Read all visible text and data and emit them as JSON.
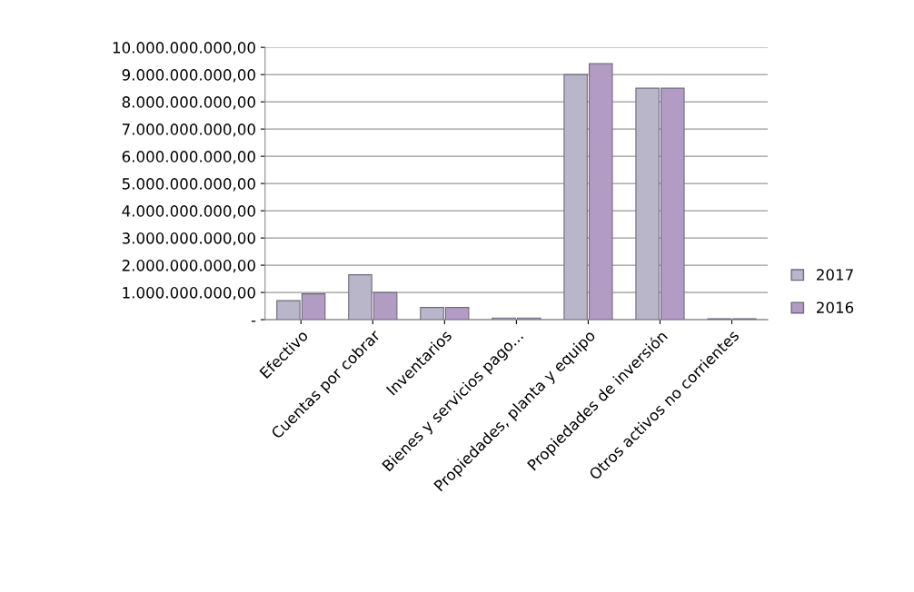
{
  "chart_data": {
    "type": "bar",
    "categories": [
      "Efectivo",
      "Cuentas por cobrar",
      "Inventarios",
      "Bienes y servicios pago...",
      "Propiedades, planta y equipo",
      "Propiedades de inversión",
      "Otros activos no corrientes"
    ],
    "series": [
      {
        "name": "2017",
        "color": "#b9b6c9",
        "values": [
          700000000,
          1650000000,
          450000000,
          60000000,
          9000000000,
          8500000000,
          30000000
        ]
      },
      {
        "name": "2016",
        "color": "#b39cc4",
        "values": [
          950000000,
          1000000000,
          450000000,
          60000000,
          9400000000,
          8500000000,
          30000000
        ]
      }
    ],
    "ylim": [
      0,
      10000000000
    ],
    "yticks": [
      {
        "value": 0,
        "label": "-"
      },
      {
        "value": 1000000000,
        "label": "1.000.000.000,00"
      },
      {
        "value": 2000000000,
        "label": "2.000.000.000,00"
      },
      {
        "value": 3000000000,
        "label": "3.000.000.000,00"
      },
      {
        "value": 4000000000,
        "label": "4.000.000.000,00"
      },
      {
        "value": 5000000000,
        "label": "5.000.000.000,00"
      },
      {
        "value": 6000000000,
        "label": "6.000.000.000,00"
      },
      {
        "value": 7000000000,
        "label": "7.000.000.000,00"
      },
      {
        "value": 8000000000,
        "label": "8.000.000.000,00"
      },
      {
        "value": 9000000000,
        "label": "9.000.000.000,00"
      },
      {
        "value": 10000000000,
        "label": "10.000.000.000,00"
      }
    ],
    "grid": "y",
    "legend": "right"
  }
}
